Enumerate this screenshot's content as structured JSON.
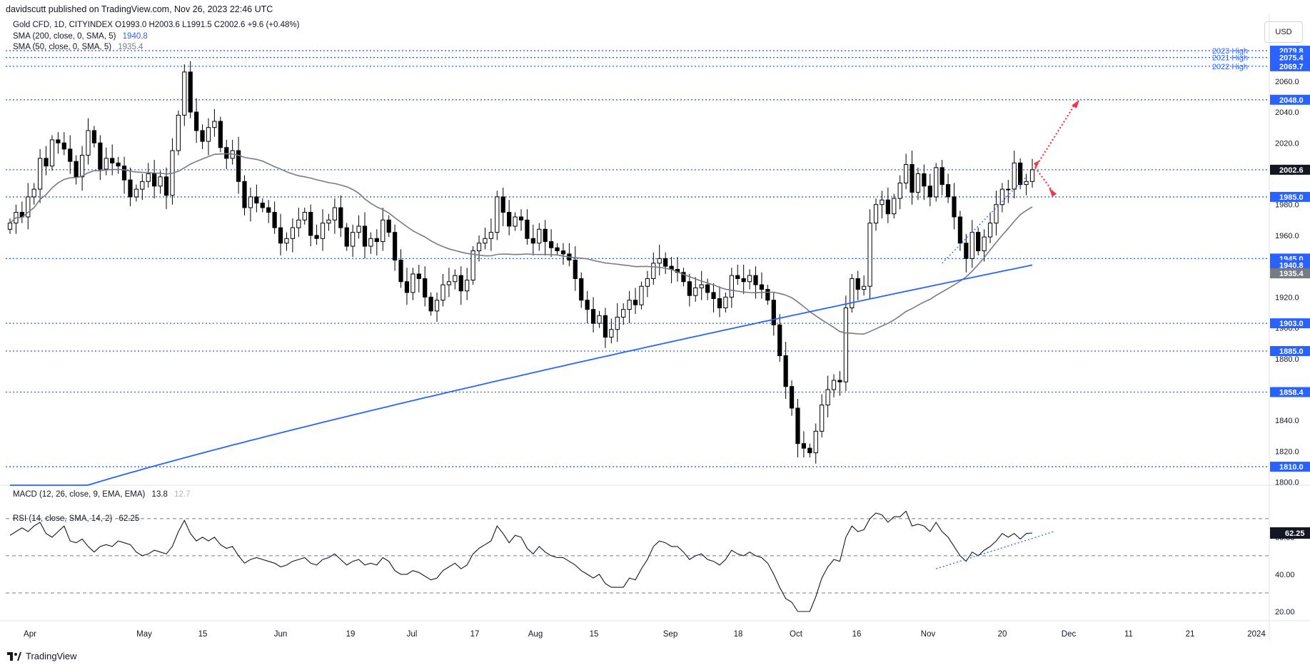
{
  "header": {
    "published": "davidscutt published on TradingView.com, Nov 26, 2023 22:46 UTC",
    "symbol_line": "Gold CFD, 1D, CITYINDEX  O1993.0  H2003.6  L1991.5  C2002.6  +9.6 (+0.48%)",
    "sma200_label": "SMA (200, close, 0, SMA, 5)",
    "sma200_value": "1940.8",
    "sma50_label": "SMA (50, close, 0, SMA, 5)",
    "sma50_value": "1935.4",
    "currency_button": "USD"
  },
  "footer": {
    "brand": "TradingView"
  },
  "colors": {
    "up": "#ffffff",
    "down": "#000000",
    "candle_border": "#000000",
    "sma200": "#2962ff",
    "sma50": "#787b86",
    "level_line": "#2962ff",
    "arrow": "#f23645",
    "rsi": "#131722"
  },
  "chart_data": [
    {
      "type": "candlestick",
      "title": "Gold CFD, 1D, CITYINDEX",
      "y_axis_ticks": [
        "2060.0",
        "2040.0",
        "2020.0",
        "1980.0",
        "1960.0",
        "1920.0",
        "1900.0",
        "1880.0",
        "1840.0",
        "1820.0",
        "1800.0"
      ],
      "x_axis_ticks": [
        "Apr",
        "May",
        "15",
        "Jun",
        "19",
        "Jul",
        "17",
        "Aug",
        "15",
        "Sep",
        "18",
        "Oct",
        "16",
        "Nov",
        "20",
        "Dec",
        "11",
        "21",
        "2024"
      ],
      "ylim": [
        1798,
        2084
      ],
      "horizontal_levels": [
        {
          "value": 2079.8,
          "label": "2023 High"
        },
        {
          "value": 2075.4,
          "label": "2021 High"
        },
        {
          "value": 2069.7,
          "label": "2022 High"
        },
        {
          "value": 2048.0
        },
        {
          "value": 2002.6
        },
        {
          "value": 1985.0
        },
        {
          "value": 1945.0
        },
        {
          "value": 1903.0
        },
        {
          "value": 1885.0
        },
        {
          "value": 1858.4
        },
        {
          "value": 1810.0
        }
      ],
      "price_badges": [
        {
          "text": "2079.8"
        },
        {
          "text": "2075.4"
        },
        {
          "text": "2069.7"
        },
        {
          "text": "2048.0"
        },
        {
          "text": "2002.6"
        },
        {
          "text": "1985.0"
        },
        {
          "text": "1945.0"
        },
        {
          "text": "1940.8"
        },
        {
          "text": "1935.4"
        },
        {
          "text": "1903.0"
        },
        {
          "text": "1885.0"
        },
        {
          "text": "1858.4"
        },
        {
          "text": "1810.0"
        }
      ],
      "level_labels": [
        {
          "text": "2023 High",
          "level": 2079.8
        },
        {
          "text": "2021 High",
          "level": 2075.4
        },
        {
          "text": "2022 High",
          "level": 2069.7
        }
      ],
      "series": [
        {
          "name": "Gold CFD",
          "kind": "ohlc",
          "close": [
            1968,
            1975,
            1972,
            1985,
            1990,
            2010,
            2005,
            2022,
            2020,
            2016,
            2008,
            1998,
            2012,
            2028,
            2020,
            2003,
            2010,
            2007,
            2005,
            1996,
            1985,
            1990,
            1995,
            2000,
            1992,
            1998,
            1986,
            2015,
            2038,
            2066,
            2040,
            2028,
            2021,
            2030,
            2034,
            2017,
            2010,
            2015,
            1995,
            1978,
            1985,
            1981,
            1978,
            1975,
            1965,
            1955,
            1958,
            1965,
            1970,
            1975,
            1960,
            1958,
            1968,
            1970,
            1978,
            1965,
            1953,
            1962,
            1966,
            1953,
            1958,
            1956,
            1970,
            1962,
            1944,
            1930,
            1923,
            1935,
            1932,
            1920,
            1911,
            1918,
            1928,
            1930,
            1934,
            1924,
            1931,
            1950,
            1955,
            1958,
            1962,
            1985,
            1975,
            1966,
            1972,
            1970,
            1958,
            1955,
            1964,
            1956,
            1952,
            1950,
            1948,
            1944,
            1932,
            1918,
            1912,
            1903,
            1908,
            1894,
            1899,
            1907,
            1912,
            1918,
            1915,
            1927,
            1932,
            1942,
            1945,
            1940,
            1938,
            1936,
            1930,
            1921,
            1926,
            1928,
            1923,
            1919,
            1913,
            1920,
            1934,
            1932,
            1930,
            1934,
            1928,
            1925,
            1918,
            1902,
            1882,
            1862,
            1848,
            1825,
            1822,
            1819,
            1833,
            1850,
            1860,
            1866,
            1865,
            1913,
            1932,
            1925,
            1927,
            1968,
            1980,
            1983,
            1974,
            1984,
            1994,
            2006,
            1988,
            2000,
            1992,
            1985,
            2004,
            1993,
            1985,
            1972,
            1955,
            1945,
            1962,
            1950,
            1959,
            1968,
            1980,
            1990,
            1990,
            2007,
            1993,
            1995,
            2002.6
          ]
        },
        {
          "name": "SMA (200, close, 0, SMA, 5)",
          "kind": "line",
          "color": "#2962ff"
        },
        {
          "name": "SMA (50, close, 0, SMA, 5)",
          "kind": "line",
          "color": "#787b86"
        }
      ]
    },
    {
      "type": "line",
      "title": "MACD (12, 26, close, 9, EMA, EMA)",
      "values_shown": [
        "13.8",
        "12.7"
      ]
    },
    {
      "type": "line",
      "title": "RSI (14, close, SMA, 14, 2)",
      "value": "62.25",
      "y_axis_ticks": [
        "60.00",
        "40.00",
        "20.00"
      ],
      "ylim": [
        15,
        78
      ],
      "reference_levels": [
        70,
        50,
        30
      ],
      "series": [
        {
          "name": "RSI",
          "values": [
            61,
            63,
            65,
            63,
            66,
            68,
            62,
            60,
            63,
            66,
            58,
            57,
            59,
            55,
            52,
            55,
            56,
            55,
            58,
            57,
            56,
            52,
            50,
            51,
            53,
            52,
            51,
            55,
            63,
            69,
            62,
            58,
            60,
            58,
            60,
            56,
            54,
            55,
            50,
            46,
            48,
            49,
            48,
            47,
            46,
            44,
            45,
            47,
            48,
            49,
            46,
            45,
            48,
            49,
            51,
            48,
            45,
            47,
            48,
            45,
            46,
            45,
            49,
            47,
            42,
            40,
            40,
            42,
            41,
            39,
            37,
            38,
            42,
            44,
            46,
            43,
            45,
            51,
            54,
            56,
            58,
            66,
            62,
            57,
            61,
            60,
            54,
            51,
            55,
            52,
            50,
            49,
            49,
            47,
            45,
            42,
            40,
            38,
            40,
            35,
            33,
            33,
            33,
            38,
            37,
            43,
            48,
            55,
            58,
            57,
            55,
            55,
            52,
            48,
            50,
            51,
            48,
            47,
            45,
            48,
            53,
            51,
            50,
            52,
            50,
            49,
            46,
            40,
            33,
            27,
            25,
            20,
            20,
            20,
            28,
            38,
            44,
            48,
            47,
            60,
            66,
            63,
            64,
            70,
            73,
            72,
            68,
            71,
            71,
            74,
            66,
            67,
            66,
            63,
            68,
            63,
            60,
            55,
            50,
            47,
            52,
            50,
            53,
            55,
            58,
            62,
            60,
            62,
            59,
            62,
            62.25
          ]
        }
      ]
    }
  ]
}
